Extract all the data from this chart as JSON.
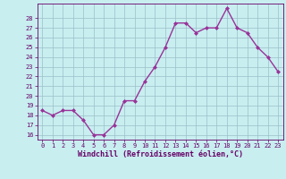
{
  "x": [
    0,
    1,
    2,
    3,
    4,
    5,
    6,
    7,
    8,
    9,
    10,
    11,
    12,
    13,
    14,
    15,
    16,
    17,
    18,
    19,
    20,
    21,
    22,
    23
  ],
  "y": [
    18.5,
    18.0,
    18.5,
    18.5,
    17.5,
    16.0,
    16.0,
    17.0,
    19.5,
    19.5,
    21.5,
    23.0,
    25.0,
    27.5,
    27.5,
    26.5,
    27.0,
    27.0,
    29.0,
    27.0,
    26.5,
    25.0,
    24.0,
    22.5
  ],
  "line_color": "#993399",
  "marker": "D",
  "markersize": 2.0,
  "linewidth": 1.0,
  "bg_color": "#c8eef0",
  "grid_color": "#9bbfc8",
  "xlabel": "Windchill (Refroidissement éolien,°C)",
  "xlabel_color": "#660066",
  "tick_color": "#660066",
  "yticks": [
    16,
    17,
    18,
    19,
    20,
    21,
    22,
    23,
    24,
    25,
    26,
    27,
    28
  ],
  "ylim": [
    15.5,
    29.5
  ],
  "xlim": [
    -0.5,
    23.5
  ],
  "xticks": [
    0,
    1,
    2,
    3,
    4,
    5,
    6,
    7,
    8,
    9,
    10,
    11,
    12,
    13,
    14,
    15,
    16,
    17,
    18,
    19,
    20,
    21,
    22,
    23
  ],
  "title": "",
  "font_family": "monospace",
  "tick_fontsize": 5.0,
  "xlabel_fontsize": 6.0
}
